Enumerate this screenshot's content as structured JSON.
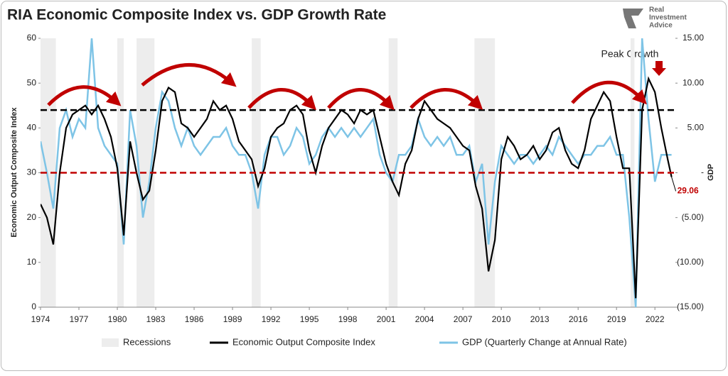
{
  "chart_data": {
    "type": "line",
    "title": "RIA Economic Composite Index vs. GDP Growth Rate",
    "logo": [
      "Real",
      "Investment",
      "Advice"
    ],
    "ylabel": "Economic Output Composite Index",
    "y2label": "GDP",
    "xlim": [
      1974,
      2023.6
    ],
    "xticks": [
      1974,
      1977,
      1980,
      1983,
      1986,
      1989,
      1992,
      1995,
      1998,
      2001,
      2004,
      2007,
      2010,
      2013,
      2016,
      2019,
      2022
    ],
    "ylim": [
      0,
      60
    ],
    "yticks": [
      0,
      10,
      20,
      30,
      40,
      50,
      60
    ],
    "y2lim": [
      -15,
      15
    ],
    "y2ticks": [
      {
        "value": 15,
        "label": "15.00"
      },
      {
        "value": 10,
        "label": "10.00"
      },
      {
        "value": 5,
        "label": "5.00"
      },
      {
        "value": 0,
        "label": "-"
      },
      {
        "value": -5,
        "label": "(5.00)"
      },
      {
        "value": -10,
        "label": "(10.00)"
      },
      {
        "value": -15,
        "label": "(15.00)"
      }
    ],
    "recessions_name": "Recessions",
    "recessions_color": "#ededed",
    "recessions": [
      [
        1973.9,
        1975.2
      ],
      [
        1980.0,
        1980.5
      ],
      [
        1981.5,
        1982.9
      ],
      [
        1990.5,
        1991.2
      ],
      [
        2001.2,
        2001.9
      ],
      [
        2007.9,
        2009.5
      ],
      [
        2020.1,
        2020.4
      ]
    ],
    "reference_lines": [
      {
        "value": 44,
        "color": "#000000"
      },
      {
        "value": 30,
        "color": "#c00000"
      }
    ],
    "peak_label": "Peak Growth",
    "end_label": "29.06",
    "x": [
      1974,
      1974.5,
      1975,
      1975.5,
      1976,
      1976.5,
      1977,
      1977.5,
      1978,
      1978.5,
      1979,
      1979.5,
      1980,
      1980.5,
      1981,
      1981.5,
      1982,
      1982.5,
      1983,
      1983.5,
      1984,
      1984.5,
      1985,
      1985.5,
      1986,
      1986.5,
      1987,
      1987.5,
      1988,
      1988.5,
      1989,
      1989.5,
      1990,
      1990.5,
      1991,
      1991.5,
      1992,
      1992.5,
      1993,
      1993.5,
      1994,
      1994.5,
      1995,
      1995.5,
      1996,
      1996.5,
      1997,
      1997.5,
      1998,
      1998.5,
      1999,
      1999.5,
      2000,
      2000.5,
      2001,
      2001.5,
      2002,
      2002.5,
      2003,
      2003.5,
      2004,
      2004.5,
      2005,
      2005.5,
      2006,
      2006.5,
      2007,
      2007.5,
      2008,
      2008.5,
      2009,
      2009.5,
      2010,
      2010.5,
      2011,
      2011.5,
      2012,
      2012.5,
      2013,
      2013.5,
      2014,
      2014.5,
      2015,
      2015.5,
      2016,
      2016.5,
      2017,
      2017.5,
      2018,
      2018.5,
      2019,
      2019.5,
      2020,
      2020.5,
      2021,
      2021.5,
      2022,
      2022.5,
      2023,
      2023.3
    ],
    "series": [
      {
        "name": "Economic Output Composite Index",
        "color": "#000000",
        "values": [
          23,
          20,
          14,
          30,
          40,
          43,
          44,
          45,
          43,
          45,
          42,
          38,
          31,
          16,
          37,
          30,
          24,
          26,
          35,
          46,
          49,
          48,
          41,
          40,
          38,
          40,
          42,
          46,
          44,
          45,
          42,
          37,
          35,
          33,
          27,
          31,
          38,
          40,
          41,
          44,
          45,
          43,
          35,
          30,
          36,
          40,
          42,
          44,
          43,
          41,
          44,
          43,
          44,
          38,
          32,
          28,
          25,
          32,
          35,
          42,
          46,
          44,
          42,
          41,
          40,
          38,
          36,
          35,
          27,
          22,
          8,
          15,
          33,
          38,
          36,
          33,
          34,
          36,
          33,
          35,
          39,
          40,
          35,
          32,
          31,
          35,
          42,
          45,
          48,
          46,
          38,
          31,
          31,
          2,
          44,
          51,
          48,
          40,
          33,
          29.06
        ]
      },
      {
        "name": "GDP (Quarterly Change at Annual Rate)",
        "color": "#7ec4e6",
        "axis": "y2",
        "values": [
          3.5,
          0,
          -4,
          5,
          7,
          4,
          6,
          5,
          15,
          5,
          3,
          2,
          1,
          -8,
          7,
          3,
          -5,
          -1,
          5,
          9,
          8,
          5,
          3,
          5,
          3,
          2,
          3,
          4,
          4,
          5,
          3,
          2,
          2,
          0,
          -4,
          2,
          4,
          4,
          2,
          3,
          5,
          4,
          1,
          2,
          4,
          5,
          4,
          5,
          4,
          5,
          4,
          5,
          6,
          2,
          0,
          -1,
          2,
          2,
          3,
          6,
          4,
          3,
          4,
          3,
          4,
          2,
          2,
          3,
          -1,
          1,
          -8,
          -1,
          3,
          2,
          1,
          2,
          2,
          1,
          2,
          3,
          2,
          4,
          3,
          2,
          1,
          2,
          2,
          3,
          3,
          4,
          2,
          2,
          -5,
          -15,
          15,
          6,
          -1,
          2,
          2,
          2
        ]
      }
    ]
  }
}
